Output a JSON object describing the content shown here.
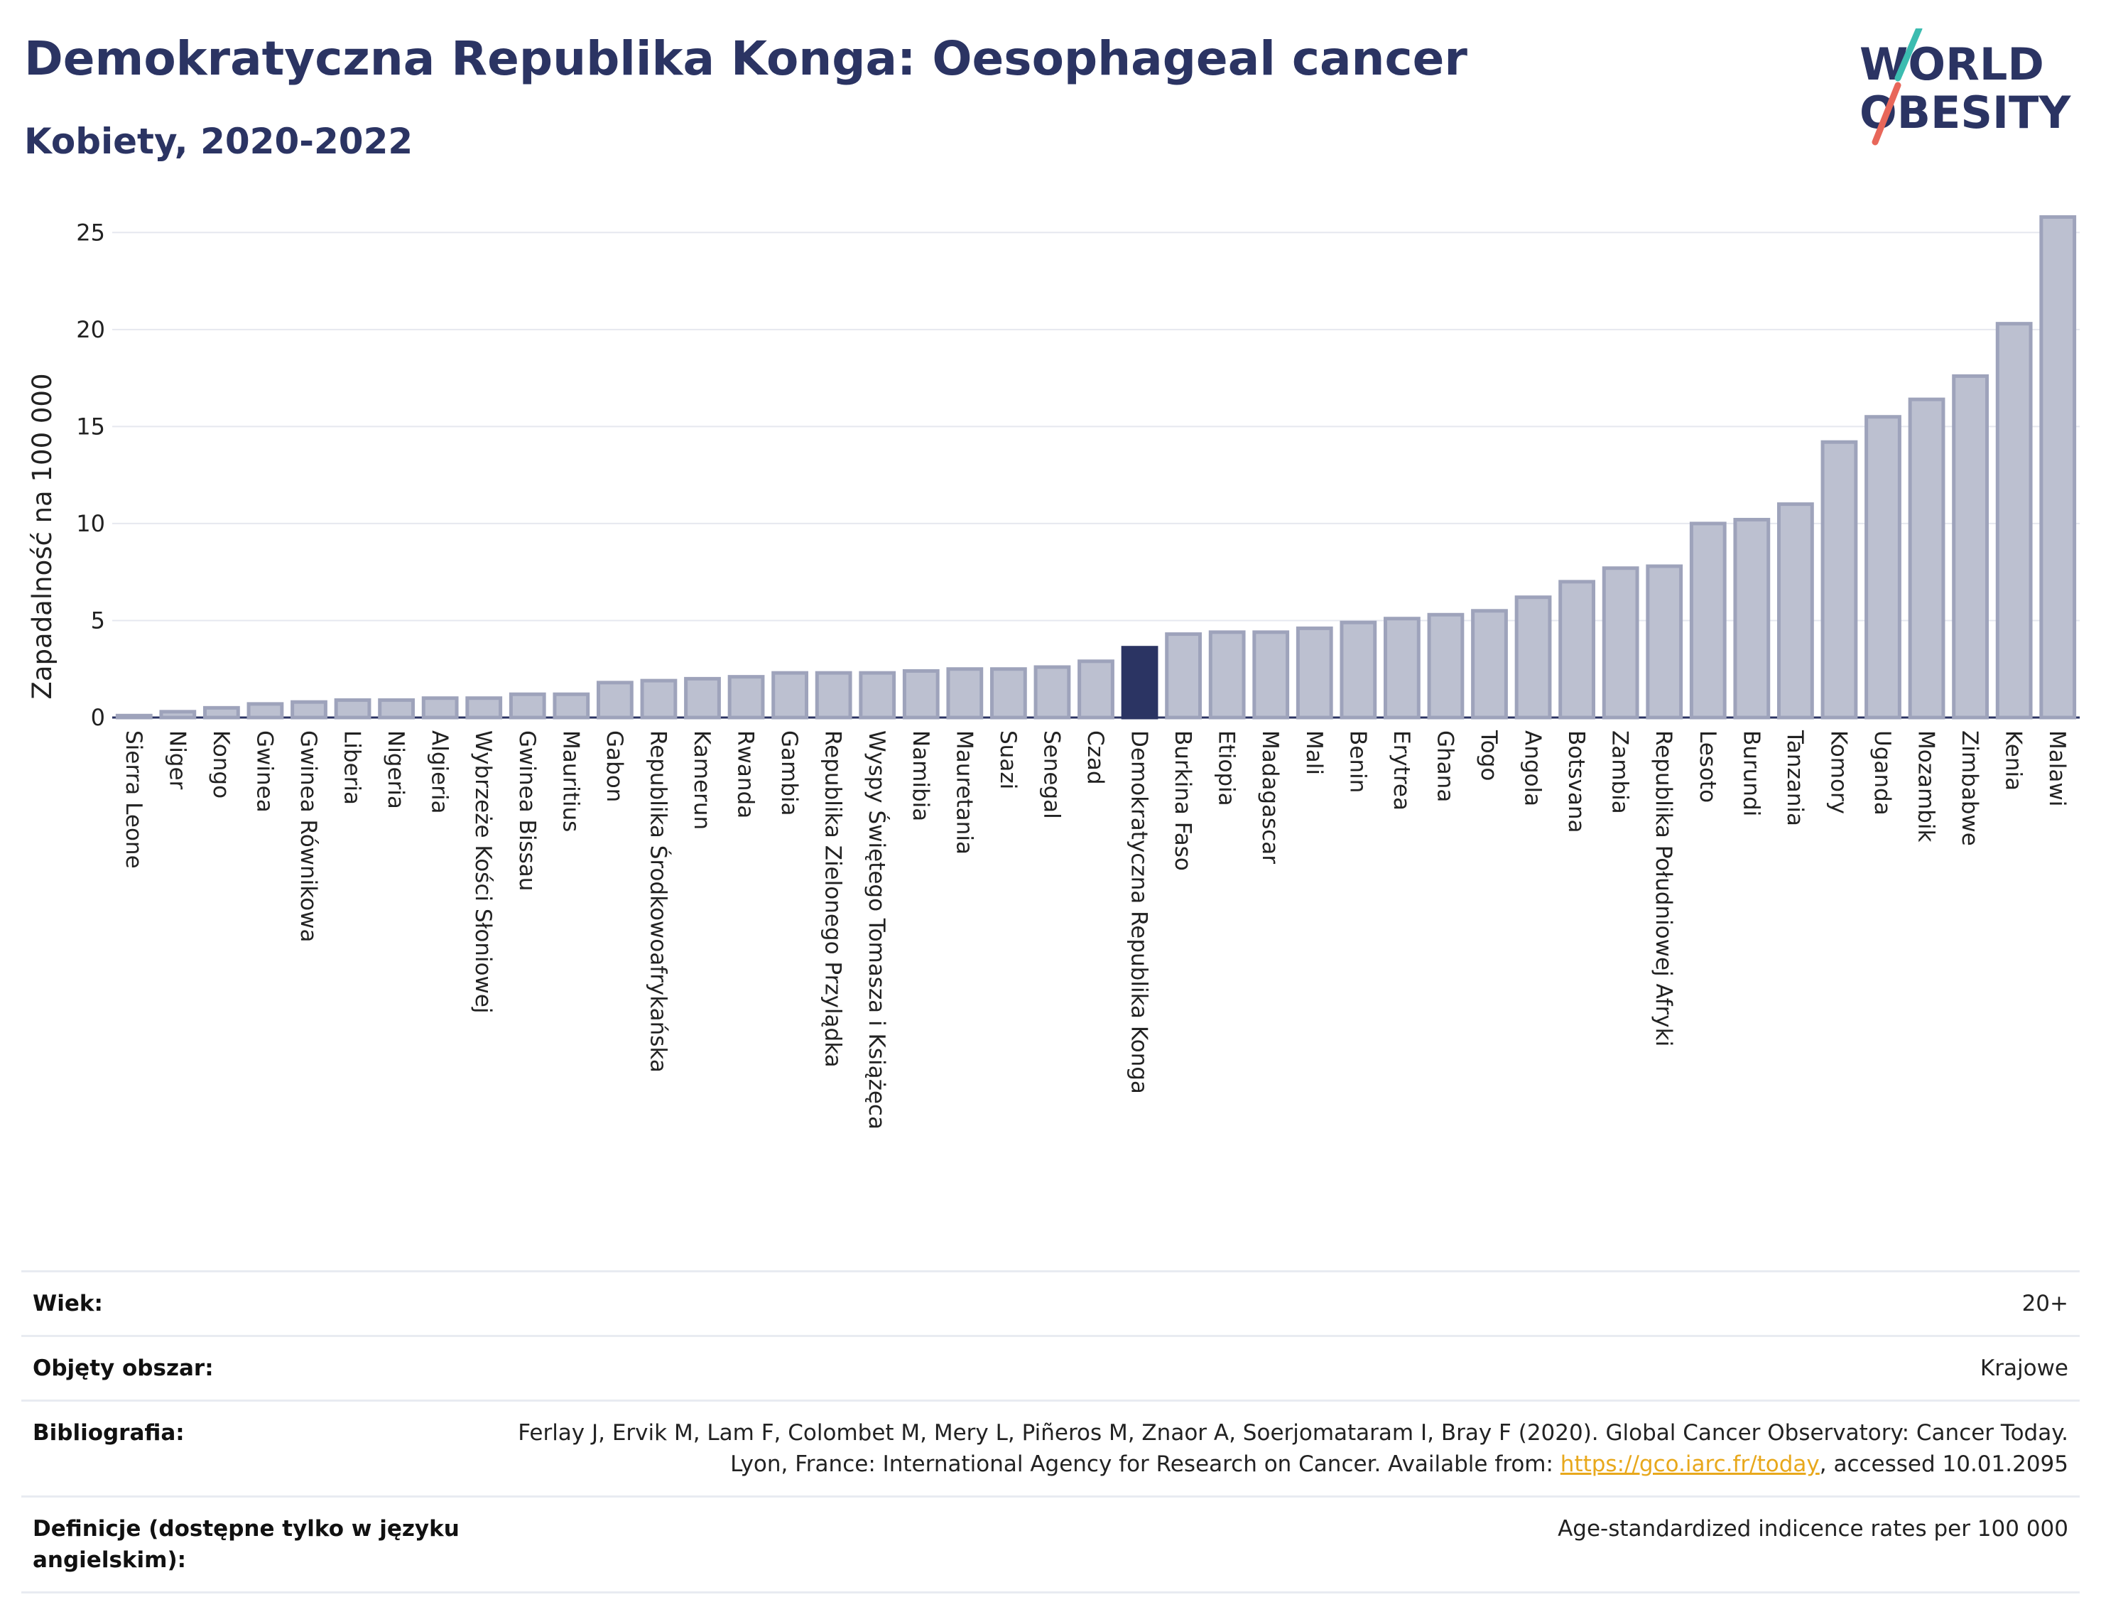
{
  "header": {
    "title": "Demokratyczna Republika Konga: Oesophageal cancer",
    "subtitle": "Kobiety, 2020-2022"
  },
  "logo": {
    "line1": "WORLD",
    "line2": "OBESITY",
    "accent_teal": "#3bbcb0",
    "accent_coral": "#e8675a"
  },
  "colors": {
    "bar_default": "#bcc0d0",
    "bar_default_stroke": "#9ea3bb",
    "bar_highlight": "#2b3463",
    "text_dark": "#2b3463"
  },
  "chart_data": {
    "type": "bar",
    "ylabel": "Zapadalność na 100 000",
    "ylim": [
      0,
      26
    ],
    "yticks": [
      0,
      5,
      10,
      15,
      20,
      25
    ],
    "grid": true,
    "highlight": "Demokratyczna Republika Konga",
    "categories": [
      "Sierra Leone",
      "Niger",
      "Kongo",
      "Gwinea",
      "Gwinea Równikowa",
      "Liberia",
      "Nigeria",
      "Algieria",
      "Wybrzeże Kości Słoniowej",
      "Gwinea Bissau",
      "Mauritius",
      "Gabon",
      "Republika Środkowoafrykańska",
      "Kamerun",
      "Rwanda",
      "Gambia",
      "Republika Zielonego Przylądka",
      "Wyspy Świętego Tomasza i Książęca",
      "Namibia",
      "Mauretania",
      "Suazi",
      "Senegal",
      "Czad",
      "Demokratyczna Republika Konga",
      "Burkina Faso",
      "Etiopia",
      "Madagascar",
      "Mali",
      "Benin",
      "Erytrea",
      "Ghana",
      "Togo",
      "Angola",
      "Botsvana",
      "Zambia",
      "Republika Południowej Afryki",
      "Lesoto",
      "Burundi",
      "Tanzania",
      "Komory",
      "Uganda",
      "Mozambik",
      "Zimbabwe",
      "Kenia",
      "Malawi"
    ],
    "values": [
      0.1,
      0.3,
      0.5,
      0.7,
      0.8,
      0.9,
      0.9,
      1.0,
      1.0,
      1.2,
      1.2,
      1.8,
      1.9,
      2.0,
      2.1,
      2.3,
      2.3,
      2.3,
      2.4,
      2.5,
      2.5,
      2.6,
      2.9,
      3.6,
      4.3,
      4.4,
      4.4,
      4.6,
      4.9,
      5.1,
      5.3,
      5.5,
      6.2,
      7.0,
      7.7,
      7.8,
      10.0,
      10.2,
      11.0,
      14.2,
      15.5,
      16.4,
      17.6,
      20.3,
      25.8
    ]
  },
  "info": {
    "rows": [
      {
        "key": "Wiek:",
        "value": "20+"
      },
      {
        "key": "Objęty obszar:",
        "value": "Krajowe"
      },
      {
        "key": "Bibliografia:",
        "value_pre": "Ferlay J, Ervik M, Lam F, Colombet M, Mery L, Piñeros M, Znaor A, Soerjomataram I, Bray F (2020). Global Cancer Observatory: Cancer Today. Lyon, France: International Agency for Research on Cancer. Available from: ",
        "link": "https://gco.iarc.fr/today",
        "value_post": ", accessed 10.01.2095"
      },
      {
        "key": "Definicje (dostępne tylko w języku angielskim):",
        "value": "Age-standardized indicence rates per 100 000"
      }
    ]
  }
}
